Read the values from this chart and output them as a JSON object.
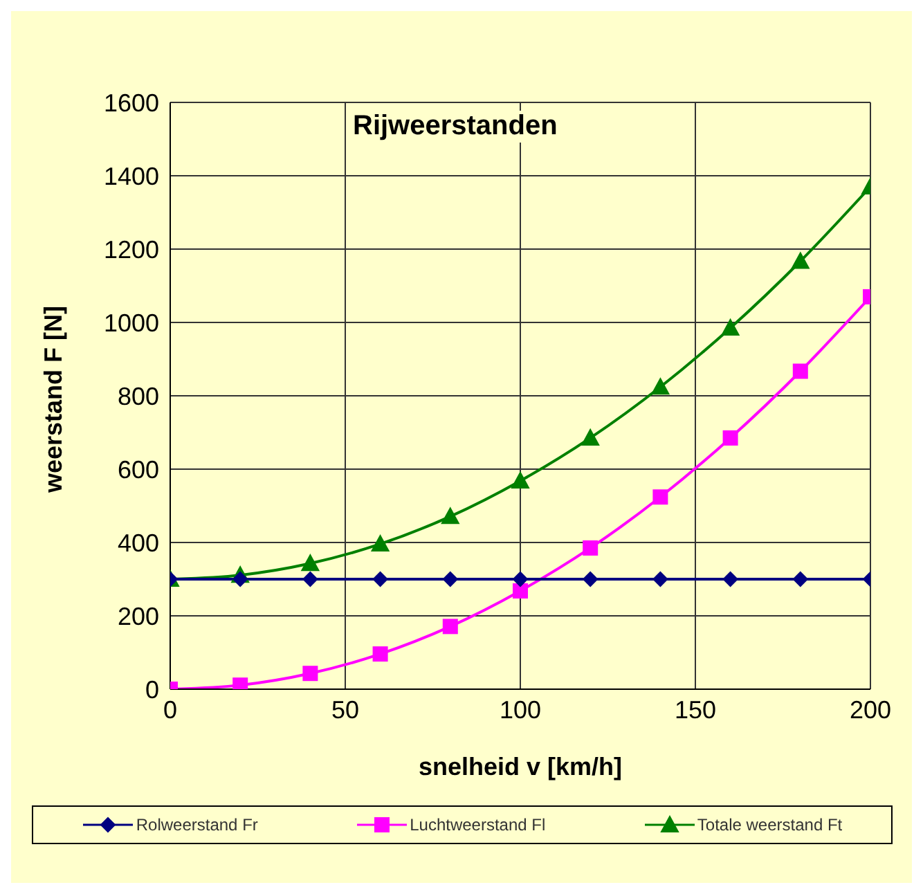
{
  "chart_data": {
    "type": "line",
    "title": "Rijweerstanden",
    "xlabel": "snelheid v  [km/h]",
    "ylabel": "weerstand F  [N]",
    "x": [
      0,
      20,
      40,
      60,
      80,
      100,
      120,
      140,
      160,
      180,
      200
    ],
    "series": [
      {
        "name": "Rolweerstand Fr",
        "color": "#000080",
        "marker": "diamond",
        "values": [
          300,
          300,
          300,
          300,
          300,
          300,
          300,
          300,
          300,
          300,
          300
        ]
      },
      {
        "name": "Luchtweerstand Fl",
        "color": "#ff00ff",
        "marker": "square",
        "values": [
          0,
          11,
          43,
          96,
          171,
          268,
          385,
          524,
          685,
          867,
          1070
        ]
      },
      {
        "name": "Totale weerstand Ft",
        "color": "#008000",
        "marker": "triangle",
        "values": [
          300,
          311,
          343,
          396,
          471,
          568,
          685,
          824,
          985,
          1167,
          1370
        ]
      }
    ],
    "xlim": [
      0,
      200
    ],
    "xticks": [
      0,
      50,
      100,
      150,
      200
    ],
    "ylim": [
      0,
      1600
    ],
    "yticks": [
      0,
      200,
      400,
      600,
      800,
      1000,
      1200,
      1400,
      1600
    ],
    "grid": true,
    "legend": "bottom",
    "line_style": "solid"
  }
}
